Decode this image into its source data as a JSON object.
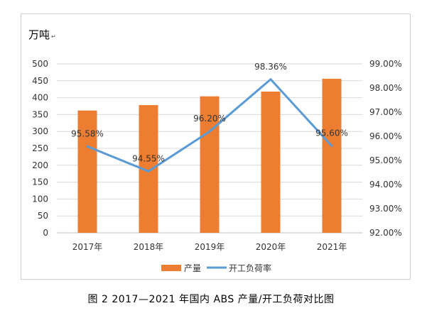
{
  "unit_label": "万吨",
  "unit_mark": "↵",
  "caption": "图 2  2017—2021 年国内 ABS 产量/开工负荷对比图",
  "colors": {
    "bar": "#ED7D31",
    "line": "#5B9BD5",
    "grid": "#d9d9d9",
    "axis": "#bfbfbf"
  },
  "chart_data": {
    "type": "bar",
    "categories": [
      "2017年",
      "2018年",
      "2019年",
      "2020年",
      "2021年"
    ],
    "series": [
      {
        "name": "产量",
        "type": "bar",
        "axis": "left",
        "values": [
          362,
          378,
          404,
          418,
          456
        ]
      },
      {
        "name": "开工负荷率",
        "type": "line",
        "axis": "right",
        "values": [
          95.58,
          94.55,
          96.2,
          98.36,
          95.6
        ],
        "labels": [
          "95.58%",
          "94.55%",
          "96.20%",
          "98.36%",
          "95.60%"
        ]
      }
    ],
    "yleft": {
      "min": 0,
      "max": 500,
      "step": 50,
      "ticks": [
        "0",
        "50",
        "100",
        "150",
        "200",
        "250",
        "300",
        "350",
        "400",
        "450",
        "500"
      ]
    },
    "yright": {
      "min": 92,
      "max": 99,
      "step": 1,
      "ticks": [
        "92.00%",
        "93.00%",
        "94.00%",
        "95.00%",
        "96.00%",
        "97.00%",
        "98.00%",
        "99.00%"
      ]
    },
    "grid": true,
    "legend": "bottom"
  }
}
